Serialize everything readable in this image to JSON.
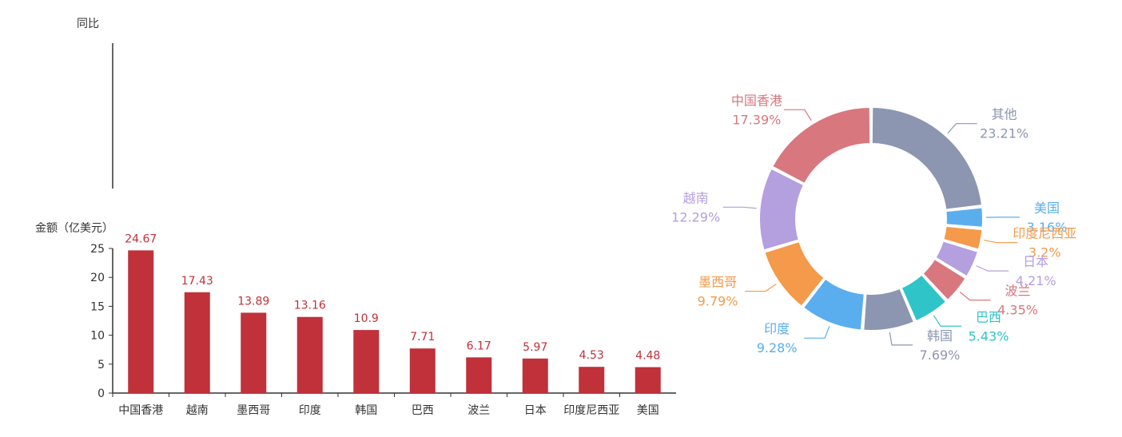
{
  "chart_data": [
    {
      "type": "line",
      "ylabel": "同比",
      "series": []
    },
    {
      "type": "bar",
      "ylabel": "金额（亿美元）",
      "categories": [
        "中国香港",
        "越南",
        "墨西哥",
        "印度",
        "韩国",
        "巴西",
        "波兰",
        "日本",
        "印度尼西亚",
        "美国"
      ],
      "values": [
        24.67,
        17.43,
        13.89,
        13.16,
        10.9,
        7.71,
        6.17,
        5.97,
        4.53,
        4.48
      ],
      "value_labels": [
        "24.67",
        "17.43",
        "13.89",
        "13.16",
        "10.9",
        "7.71",
        "6.17",
        "5.97",
        "4.53",
        "4.48"
      ],
      "yticks": [
        "0",
        "5",
        "10",
        "15",
        "20",
        "25"
      ],
      "ylim": [
        0,
        25
      ],
      "bar_color": "#c0313a"
    },
    {
      "type": "pie",
      "donut": true,
      "slices": [
        {
          "name": "其他",
          "value": 23.21,
          "label": "23.21%",
          "color": "#8c96b1"
        },
        {
          "name": "美国",
          "value": 3.16,
          "label": "3.16%",
          "color": "#5aaeee"
        },
        {
          "name": "印度尼西亚",
          "value": 3.2,
          "label": "3.2%",
          "color": "#f49a4a"
        },
        {
          "name": "日本",
          "value": 4.21,
          "label": "4.21%",
          "color": "#b49fdf"
        },
        {
          "name": "波兰",
          "value": 4.35,
          "label": "4.35%",
          "color": "#d9777e"
        },
        {
          "name": "巴西",
          "value": 5.43,
          "label": "5.43%",
          "color": "#2fc4c8"
        },
        {
          "name": "韩国",
          "value": 7.69,
          "label": "7.69%",
          "color": "#8c96b1"
        },
        {
          "name": "印度",
          "value": 9.28,
          "label": "9.28%",
          "color": "#5aaeee"
        },
        {
          "name": "墨西哥",
          "value": 9.79,
          "label": "9.79%",
          "color": "#f49a4a"
        },
        {
          "name": "越南",
          "value": 12.29,
          "label": "12.29%",
          "color": "#b49fdf"
        },
        {
          "name": "中国香港",
          "value": 17.39,
          "label": "17.39%",
          "color": "#d9777e"
        }
      ]
    }
  ]
}
